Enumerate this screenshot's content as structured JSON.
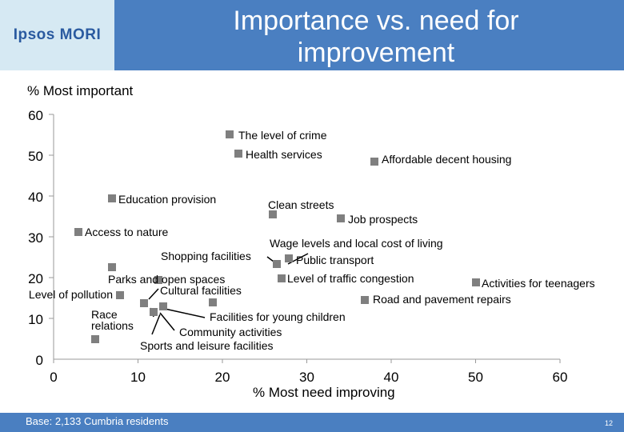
{
  "header": {
    "logo": "Ipsos MORI",
    "title_line1": "Importance vs. need for",
    "title_line2": "improvement"
  },
  "footer": {
    "base": "Base: 2,133 Cumbria residents",
    "page": "12"
  },
  "colors": {
    "accent": "#4a7fc1",
    "logo_bg": "#d6e9f3",
    "marker": "#7f7f7f"
  },
  "chart_data": {
    "type": "scatter",
    "xlabel": "% Most need improving",
    "ylabel": "% Most important",
    "xlim": [
      0,
      60
    ],
    "ylim": [
      0,
      60
    ],
    "xticks": [
      "0",
      "10",
      "20",
      "30",
      "40",
      "50",
      "60"
    ],
    "yticks": [
      "0",
      "10",
      "20",
      "30",
      "40",
      "50",
      "60"
    ],
    "grid": false,
    "points": [
      {
        "label": "The level of crime",
        "x": 21,
        "y": 53
      },
      {
        "label": "Health services",
        "x": 22,
        "y": 48
      },
      {
        "label": "Affordable decent housing",
        "x": 38,
        "y": 47
      },
      {
        "label": "Education provision",
        "x": 7,
        "y": 38
      },
      {
        "label": "Clean streets",
        "x": 27,
        "y": 34
      },
      {
        "label": "Job prospects",
        "x": 34,
        "y": 33
      },
      {
        "label": "Access to nature",
        "x": 3,
        "y": 30
      },
      {
        "label": "Shopping facilities",
        "x": 26,
        "y": 21
      },
      {
        "label": "Wage levels and local cost of living",
        "x": 26,
        "y": 21
      },
      {
        "label": "Public transport",
        "x": 28,
        "y": 23
      },
      {
        "label": "Parks and open spaces",
        "x": 7,
        "y": 22
      },
      {
        "label": "Level of traffic congestion",
        "x": 27,
        "y": 18
      },
      {
        "label": "Activities for teenagers",
        "x": 50,
        "y": 17
      },
      {
        "label": "Level of pollution",
        "x": 8,
        "y": 14
      },
      {
        "label": "Road and pavement repairs",
        "x": 37,
        "y": 13
      },
      {
        "label": "Cultural facilities",
        "x": 19,
        "y": 12
      },
      {
        "label": "Race relations",
        "x": 12,
        "y": 11
      },
      {
        "label": "Facilities for young children",
        "x": 12,
        "y": 12
      },
      {
        "label": "Community activities",
        "x": 14,
        "y": 12
      },
      {
        "label": "Sports and leisure facilities",
        "x": 5,
        "y": 3
      }
    ]
  }
}
